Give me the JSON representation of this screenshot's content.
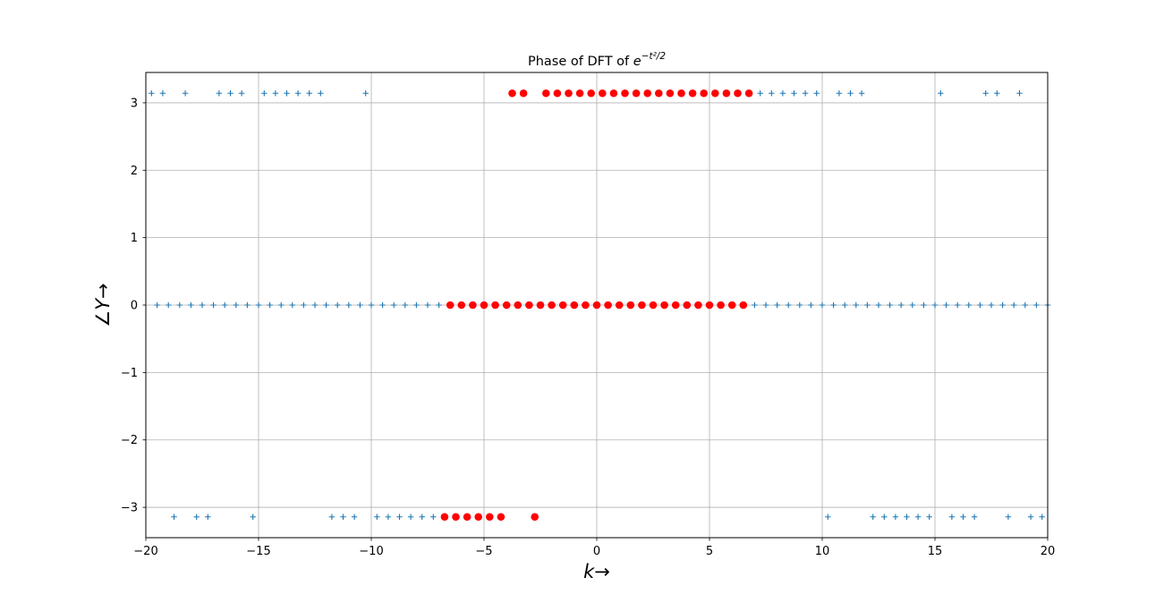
{
  "chart_data": {
    "type": "scatter",
    "title": "Phase of DFT of e^{−t²/2}",
    "title_parts": {
      "prefix": "Phase of DFT of ",
      "base": "e",
      "exponent": "−t²/2"
    },
    "xlabel": "k→",
    "ylabel": "∠Y→",
    "xlim": [
      -20,
      20
    ],
    "ylim": [
      -3.45,
      3.45
    ],
    "xticks": [
      -20,
      -15,
      -10,
      -5,
      0,
      5,
      10,
      15,
      20
    ],
    "yticks": [
      -3,
      -2,
      -1,
      0,
      1,
      2,
      3
    ],
    "xtick_labels": [
      "−20",
      "−15",
      "−10",
      "−5",
      "0",
      "5",
      "10",
      "15",
      "20"
    ],
    "ytick_labels": [
      "−3",
      "−2",
      "−1",
      "0",
      "1",
      "2",
      "3"
    ],
    "grid": true,
    "series": [
      {
        "marker": "plus",
        "color": "#1f77b4",
        "points": [
          [
            -19.75,
            3.1416
          ],
          [
            -19.25,
            3.1416
          ],
          [
            -18.25,
            3.1416
          ],
          [
            -16.75,
            3.1416
          ],
          [
            -16.25,
            3.1416
          ],
          [
            -15.75,
            3.1416
          ],
          [
            -14.75,
            3.1416
          ],
          [
            -14.25,
            3.1416
          ],
          [
            -13.75,
            3.1416
          ],
          [
            -13.25,
            3.1416
          ],
          [
            -12.75,
            3.1416
          ],
          [
            -12.25,
            3.1416
          ],
          [
            -10.25,
            3.1416
          ],
          [
            7.25,
            3.1416
          ],
          [
            7.75,
            3.1416
          ],
          [
            8.25,
            3.1416
          ],
          [
            8.75,
            3.1416
          ],
          [
            9.25,
            3.1416
          ],
          [
            9.75,
            3.1416
          ],
          [
            10.75,
            3.1416
          ],
          [
            11.25,
            3.1416
          ],
          [
            11.75,
            3.1416
          ],
          [
            15.25,
            3.1416
          ],
          [
            17.25,
            3.1416
          ],
          [
            17.75,
            3.1416
          ],
          [
            18.75,
            3.1416
          ],
          [
            -19.5,
            0
          ],
          [
            -19.0,
            0
          ],
          [
            -18.5,
            0
          ],
          [
            -18.0,
            0
          ],
          [
            -17.5,
            0
          ],
          [
            -17.0,
            0
          ],
          [
            -16.5,
            0
          ],
          [
            -16.0,
            0
          ],
          [
            -15.5,
            0
          ],
          [
            -15.0,
            0
          ],
          [
            -14.5,
            0
          ],
          [
            -14.0,
            0
          ],
          [
            -13.5,
            0
          ],
          [
            -13.0,
            0
          ],
          [
            -12.5,
            0
          ],
          [
            -12.0,
            0
          ],
          [
            -11.5,
            0
          ],
          [
            -11.0,
            0
          ],
          [
            -10.5,
            0
          ],
          [
            -10.0,
            0
          ],
          [
            -9.5,
            0
          ],
          [
            -9.0,
            0
          ],
          [
            -8.5,
            0
          ],
          [
            -8.0,
            0
          ],
          [
            -7.5,
            0
          ],
          [
            -7.0,
            0
          ],
          [
            7.0,
            0
          ],
          [
            7.5,
            0
          ],
          [
            8.0,
            0
          ],
          [
            8.5,
            0
          ],
          [
            9.0,
            0
          ],
          [
            9.5,
            0
          ],
          [
            10.0,
            0
          ],
          [
            10.5,
            0
          ],
          [
            11.0,
            0
          ],
          [
            11.5,
            0
          ],
          [
            12.0,
            0
          ],
          [
            12.5,
            0
          ],
          [
            13.0,
            0
          ],
          [
            13.5,
            0
          ],
          [
            14.0,
            0
          ],
          [
            14.5,
            0
          ],
          [
            15.0,
            0
          ],
          [
            15.5,
            0
          ],
          [
            16.0,
            0
          ],
          [
            16.5,
            0
          ],
          [
            17.0,
            0
          ],
          [
            17.5,
            0
          ],
          [
            18.0,
            0
          ],
          [
            18.5,
            0
          ],
          [
            19.0,
            0
          ],
          [
            19.5,
            0
          ],
          [
            20.0,
            0
          ],
          [
            -18.75,
            -3.1416
          ],
          [
            -17.75,
            -3.1416
          ],
          [
            -17.25,
            -3.1416
          ],
          [
            -15.25,
            -3.1416
          ],
          [
            -11.75,
            -3.1416
          ],
          [
            -11.25,
            -3.1416
          ],
          [
            -10.75,
            -3.1416
          ],
          [
            -9.75,
            -3.1416
          ],
          [
            -9.25,
            -3.1416
          ],
          [
            -8.75,
            -3.1416
          ],
          [
            -8.25,
            -3.1416
          ],
          [
            -7.75,
            -3.1416
          ],
          [
            -7.25,
            -3.1416
          ],
          [
            10.25,
            -3.1416
          ],
          [
            12.25,
            -3.1416
          ],
          [
            12.75,
            -3.1416
          ],
          [
            13.25,
            -3.1416
          ],
          [
            13.75,
            -3.1416
          ],
          [
            14.25,
            -3.1416
          ],
          [
            14.75,
            -3.1416
          ],
          [
            15.75,
            -3.1416
          ],
          [
            16.25,
            -3.1416
          ],
          [
            16.75,
            -3.1416
          ],
          [
            18.25,
            -3.1416
          ],
          [
            19.25,
            -3.1416
          ],
          [
            19.75,
            -3.1416
          ]
        ]
      },
      {
        "marker": "circle",
        "color": "#ff0000",
        "points": [
          [
            -3.75,
            3.1416
          ],
          [
            -3.25,
            3.1416
          ],
          [
            -2.25,
            3.1416
          ],
          [
            -1.75,
            3.1416
          ],
          [
            -1.25,
            3.1416
          ],
          [
            -0.75,
            3.1416
          ],
          [
            -0.25,
            3.1416
          ],
          [
            0.25,
            3.1416
          ],
          [
            0.75,
            3.1416
          ],
          [
            1.25,
            3.1416
          ],
          [
            1.75,
            3.1416
          ],
          [
            2.25,
            3.1416
          ],
          [
            2.75,
            3.1416
          ],
          [
            3.25,
            3.1416
          ],
          [
            3.75,
            3.1416
          ],
          [
            4.25,
            3.1416
          ],
          [
            4.75,
            3.1416
          ],
          [
            5.25,
            3.1416
          ],
          [
            5.75,
            3.1416
          ],
          [
            6.25,
            3.1416
          ],
          [
            6.75,
            3.1416
          ],
          [
            -6.5,
            0
          ],
          [
            -6.0,
            0
          ],
          [
            -5.5,
            0
          ],
          [
            -5.0,
            0
          ],
          [
            -4.5,
            0
          ],
          [
            -4.0,
            0
          ],
          [
            -3.5,
            0
          ],
          [
            -3.0,
            0
          ],
          [
            -2.5,
            0
          ],
          [
            -2.0,
            0
          ],
          [
            -1.5,
            0
          ],
          [
            -1.0,
            0
          ],
          [
            -0.5,
            0
          ],
          [
            0.0,
            0
          ],
          [
            0.5,
            0
          ],
          [
            1.0,
            0
          ],
          [
            1.5,
            0
          ],
          [
            2.0,
            0
          ],
          [
            2.5,
            0
          ],
          [
            3.0,
            0
          ],
          [
            3.5,
            0
          ],
          [
            4.0,
            0
          ],
          [
            4.5,
            0
          ],
          [
            5.0,
            0
          ],
          [
            5.5,
            0
          ],
          [
            6.0,
            0
          ],
          [
            6.5,
            0
          ],
          [
            -6.75,
            -3.1416
          ],
          [
            -6.25,
            -3.1416
          ],
          [
            -5.75,
            -3.1416
          ],
          [
            -5.25,
            -3.1416
          ],
          [
            -4.75,
            -3.1416
          ],
          [
            -4.25,
            -3.1416
          ],
          [
            -2.75,
            -3.1416
          ]
        ]
      }
    ]
  }
}
